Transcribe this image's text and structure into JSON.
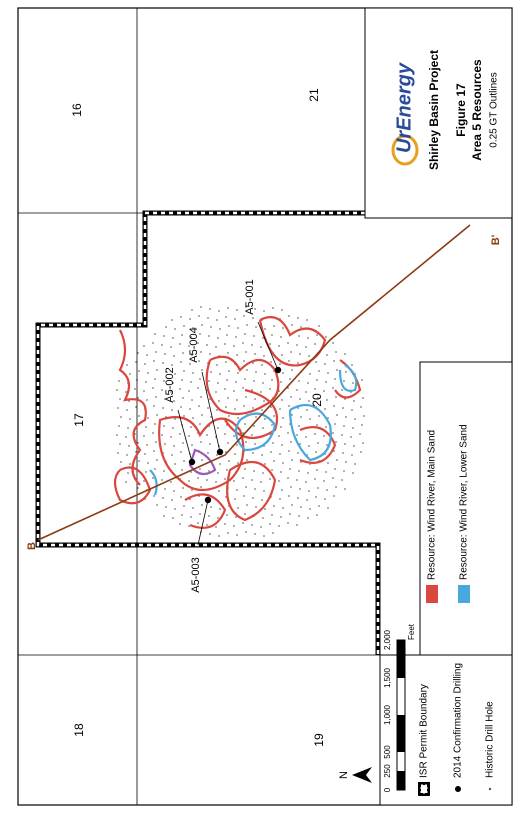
{
  "title_block": {
    "logo": "UrEnergy",
    "project": "Shirley Basin Project",
    "figure": "Figure 17",
    "subtitle": "Area 5 Resources",
    "note": "0.25 GT Outlines"
  },
  "sections": [
    "16",
    "21",
    "17",
    "20",
    "18",
    "19"
  ],
  "section_line": {
    "start": "B",
    "end": "B'"
  },
  "drill_holes": [
    "A5-001",
    "A5-002",
    "A5-003",
    "A5-004"
  ],
  "legend": {
    "permit": "ISR Permit Boundary",
    "confirmation": "2014 Confirmation Drilling",
    "historic": "Historic Drill Hole",
    "main_sand": "Resource: Wind River, Main Sand",
    "lower_sand": "Resource: Wind River, Lower Sand"
  },
  "scale": {
    "ticks": [
      "0",
      "250",
      "500",
      "1,000",
      "1,500",
      "2,000"
    ],
    "unit": "Feet"
  },
  "north": "N"
}
